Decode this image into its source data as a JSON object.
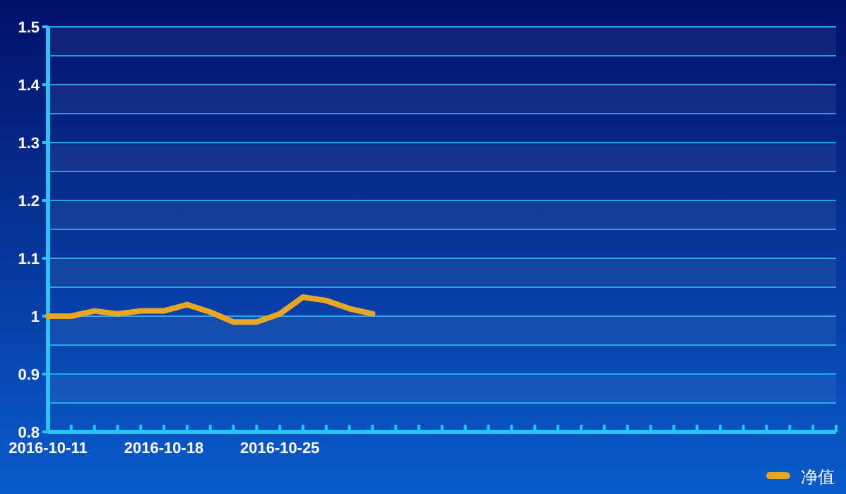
{
  "chart_data": {
    "type": "line",
    "categories": [
      "2016-10-11",
      null,
      null,
      null,
      null,
      "2016-10-18",
      null,
      null,
      null,
      null,
      "2016-10-25",
      null,
      null,
      null,
      null,
      null,
      null,
      null,
      null,
      null,
      null,
      null,
      null,
      null,
      null,
      null,
      null,
      null,
      null,
      null,
      null,
      null,
      null,
      null,
      null
    ],
    "series": [
      {
        "name": "净值",
        "color": "#e8a623",
        "values": [
          1.0,
          1.0,
          1.009,
          1.004,
          1.009,
          1.009,
          1.02,
          1.007,
          0.99,
          0.99,
          1.004,
          1.033,
          1.027,
          1.013,
          1.004,
          null,
          null,
          null,
          null,
          null,
          null,
          null,
          null,
          null,
          null,
          null,
          null,
          null,
          null,
          null,
          null,
          null,
          null,
          null,
          null
        ]
      }
    ],
    "ylim": [
      0.8,
      1.5
    ],
    "yticks": [
      0.8,
      {
        "value": 0.85,
        "label": null
      },
      0.9,
      {
        "value": 0.95,
        "label": null
      },
      1,
      {
        "value": 1.05,
        "label": null
      },
      1.1,
      {
        "value": 1.15,
        "label": null
      },
      1.2,
      {
        "value": 1.25,
        "label": null
      },
      1.3,
      {
        "value": 1.35,
        "label": null
      },
      1.4,
      {
        "value": 1.45,
        "label": null
      },
      1.5
    ],
    "grid": "y",
    "legend": "bottom right",
    "marker": "none",
    "line_style": "solid"
  }
}
